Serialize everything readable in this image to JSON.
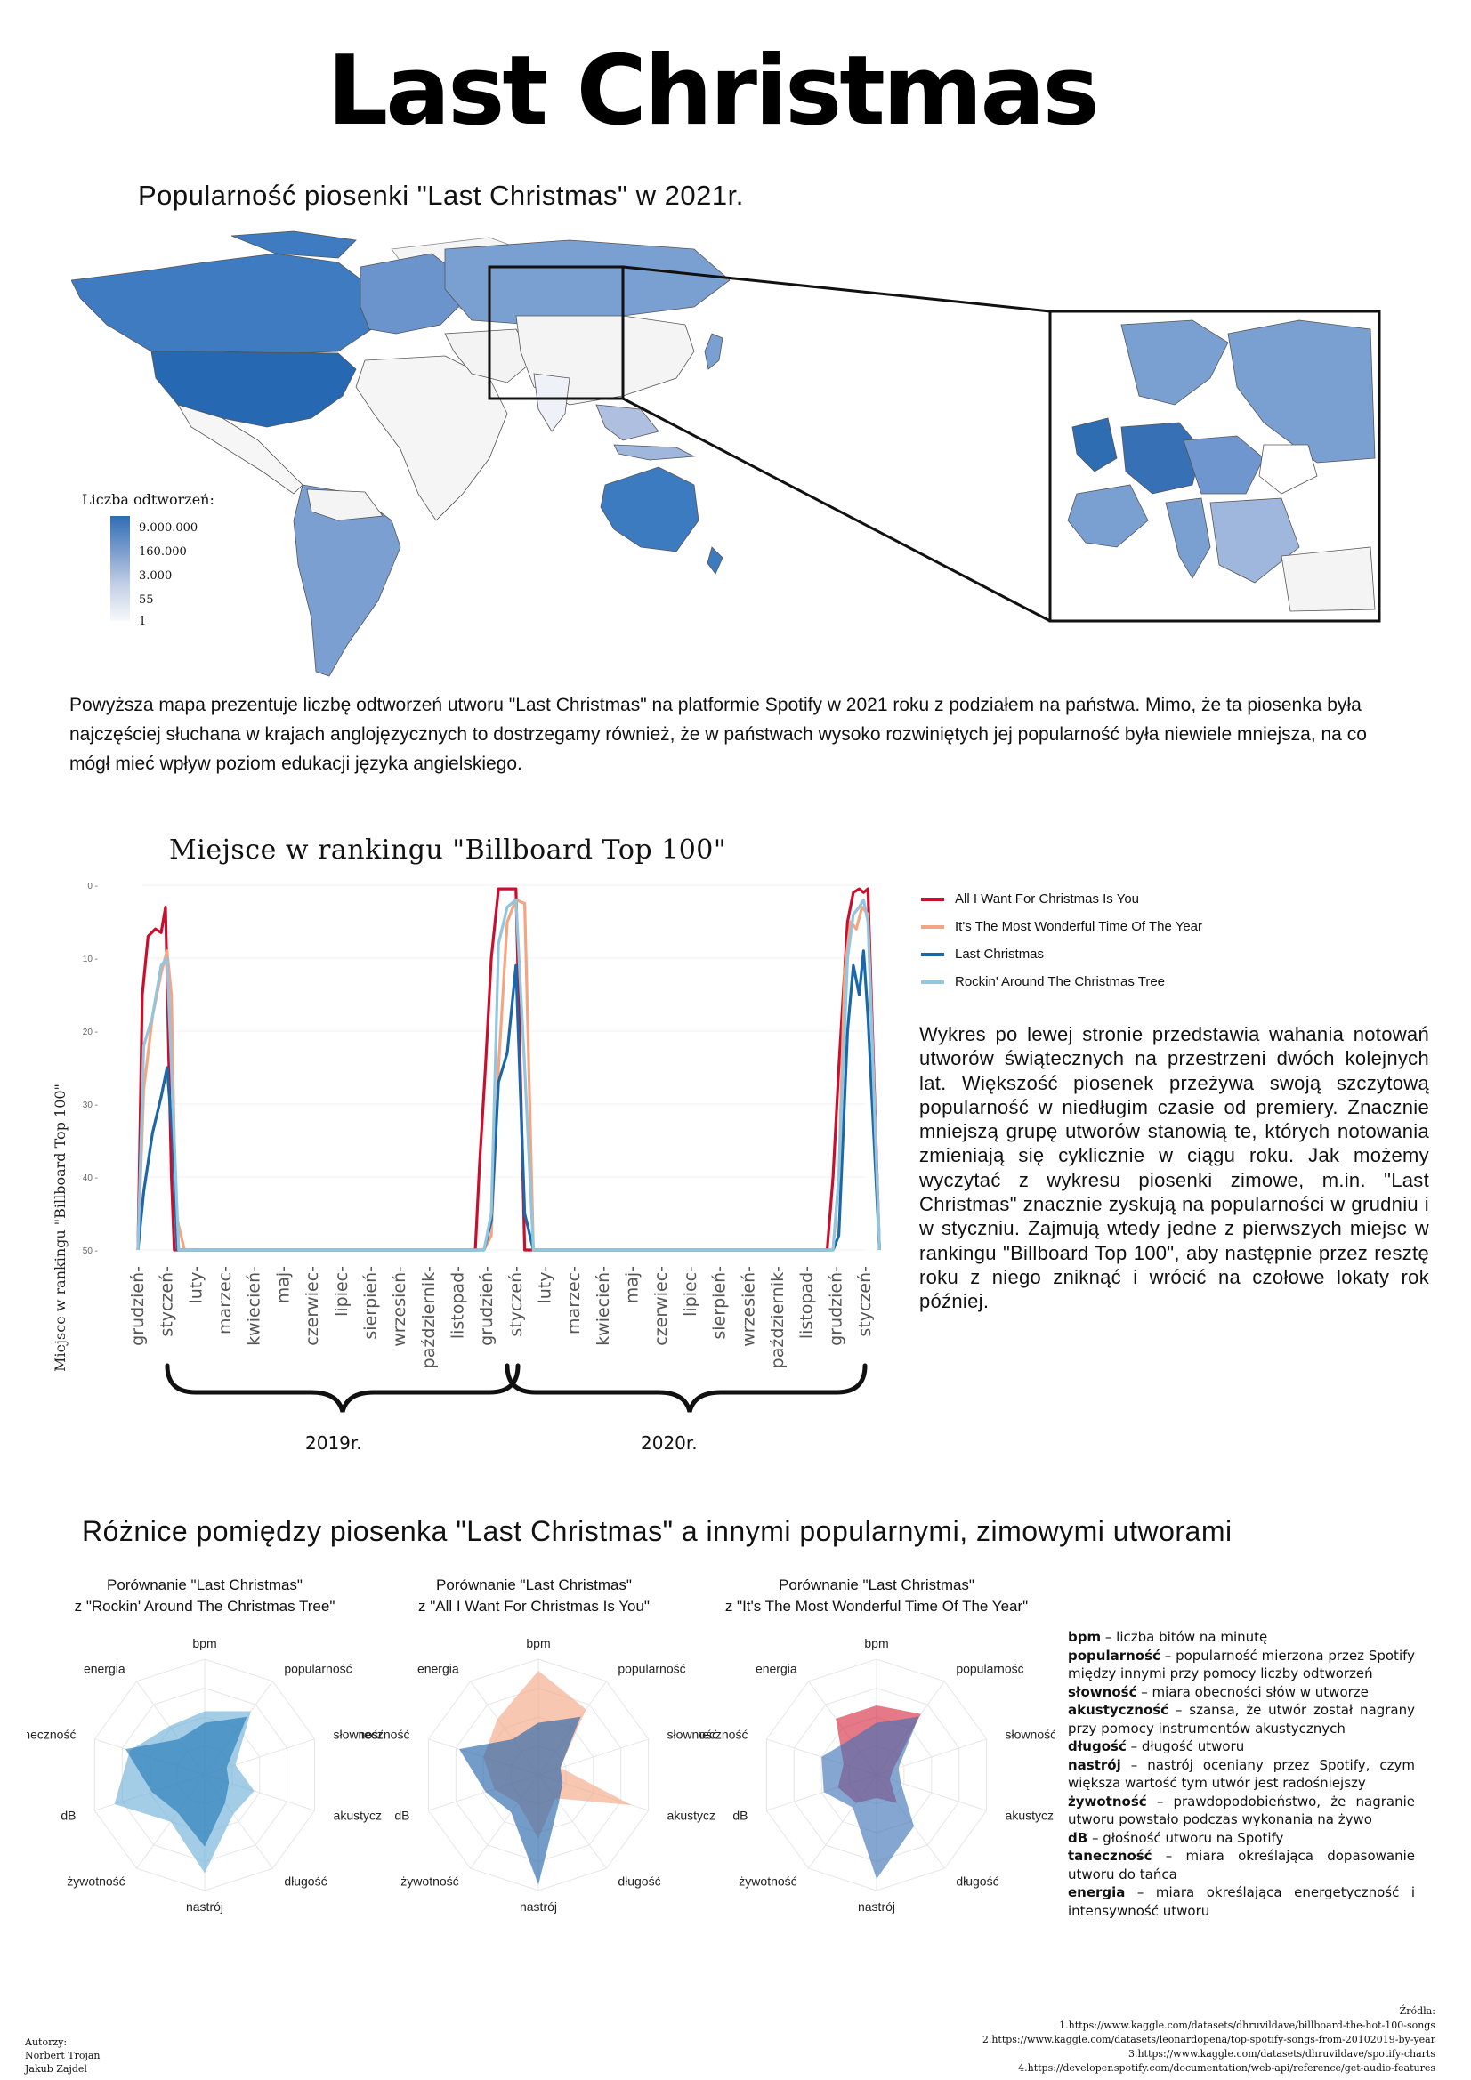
{
  "title": "Last Christmas",
  "map": {
    "title": "Popularność piosenki \"Last Christmas\" w 2021r.",
    "legend_title": "Liczba odtworzeń:",
    "legend_labels": [
      "9.000.000",
      "160.000",
      "3.000",
      "55",
      "1"
    ],
    "colors": {
      "high": "#2f6db3",
      "mid": "#7f9fcf",
      "low": "#dfe5f1",
      "none": "#f7f7f7"
    },
    "description": "Powyższa mapa prezentuje liczbę odtworzeń utworu \"Last Christmas\" na platformie Spotify w 2021 roku z podziałem na państwa. Mimo, że ta piosenka była najczęściej słuchana w krajach anglojęzycznych to dostrzegamy również, że w państwach wysoko rozwiniętych jej popularność była niewiele mniejsza, na co mógł mieć wpływ poziom edukacji języka angielskiego."
  },
  "billboard": {
    "title": "Miejsce w rankingu \"Billboard Top 100\"",
    "description": "Wykres po lewej stronie przedstawia wahania notowań utworów świątecznych na przestrzeni dwóch kolejnych lat. Większość piosenek przeżywa swoją szczytową popularność w niedługim czasie od premiery. Znacznie mniejszą grupę utworów stanowią te, których notowania zmieniają się cyklicznie w ciągu roku. Jak możemy wyczytać z wykresu piosenki zimowe, m.in. \"Last Christmas\" znacznie zyskują na popularności w grudniu i w styczniu. Zajmują wtedy jedne z pierwszych miejsc w rankingu \"Billboard Top 100\", aby następnie przez resztę roku z niego zniknąć i wrócić na czołowe lokaty rok później.",
    "years": [
      "2019r.",
      "2020r."
    ]
  },
  "chart_data": {
    "type": "line",
    "ylabel": "Miejsce w rankingu \"Billboard Top 100\"",
    "ylim": [
      50,
      0
    ],
    "yticks": [
      0,
      10,
      20,
      30,
      40,
      50
    ],
    "categories": [
      "grudzień",
      "styczeń",
      "luty",
      "marzec",
      "kwiecień",
      "maj",
      "czerwiec",
      "lipiec",
      "sierpień",
      "wrzesień",
      "październik",
      "listopad",
      "grudzień",
      "styczeń",
      "luty",
      "marzec",
      "kwiecień",
      "maj",
      "czerwiec",
      "lipiec",
      "sierpień",
      "wrzesień",
      "październik",
      "listopad",
      "grudzień",
      "styczeń"
    ],
    "series": [
      {
        "name": "All I Want For Christmas Is You",
        "color": "#c8102e",
        "x": [
          0,
          0.15,
          0.35,
          0.6,
          0.8,
          0.95,
          1.15,
          1.25,
          1.6,
          11.6,
          11.75,
          11.95,
          12.15,
          12.4,
          12.7,
          13.0,
          13.3,
          13.6,
          23.7,
          23.9,
          24.1,
          24.4,
          24.6,
          24.8,
          24.95,
          25.1,
          25.5
        ],
        "values": [
          50,
          15,
          7,
          6,
          6.5,
          3,
          40,
          50,
          50,
          50,
          38,
          25,
          10,
          0.5,
          0.5,
          0.5,
          50,
          50,
          50,
          40,
          25,
          5,
          1,
          0.5,
          1,
          0.5,
          50
        ]
      },
      {
        "name": "It's The Most Wonderful Time Of The Year",
        "color": "#f4a582",
        "x": [
          0,
          0.2,
          0.5,
          0.8,
          1.0,
          1.15,
          1.3,
          1.6,
          11.6,
          11.9,
          12.15,
          12.4,
          12.7,
          13.0,
          13.3,
          13.6,
          23.7,
          23.9,
          24.1,
          24.3,
          24.5,
          24.7,
          24.9,
          25.1,
          25.5
        ],
        "values": [
          50,
          28,
          18,
          12,
          9,
          15,
          45,
          50,
          50,
          50,
          48,
          25,
          5,
          2,
          2.5,
          50,
          50,
          50,
          40,
          12,
          5,
          6,
          3,
          4,
          50
        ]
      },
      {
        "name": "Last Christmas",
        "color": "#1b67a8",
        "x": [
          0,
          0.2,
          0.5,
          0.8,
          1.0,
          1.2,
          1.35,
          1.6,
          11.6,
          11.9,
          12.15,
          12.4,
          12.7,
          13.0,
          13.3,
          13.6,
          23.7,
          23.9,
          24.1,
          24.4,
          24.6,
          24.8,
          24.95,
          25.1,
          25.5
        ],
        "values": [
          50,
          42,
          34,
          29,
          25,
          35,
          50,
          50,
          50,
          50,
          46,
          27,
          23,
          11,
          45,
          50,
          50,
          50,
          48,
          20,
          11,
          15,
          9,
          18,
          50
        ]
      },
      {
        "name": "Rockin' Around The Christmas Tree",
        "color": "#92c5de",
        "x": [
          0,
          0.2,
          0.5,
          0.8,
          1.0,
          1.2,
          1.4,
          1.6,
          11.6,
          11.9,
          12.15,
          12.4,
          12.7,
          13.0,
          13.3,
          13.6,
          23.7,
          23.9,
          24.1,
          24.4,
          24.6,
          24.8,
          24.95,
          25.1,
          25.5
        ],
        "values": [
          50,
          22,
          18,
          11,
          10,
          30,
          50,
          50,
          50,
          50,
          45,
          8,
          3,
          2,
          25,
          50,
          50,
          50,
          40,
          10,
          4,
          3,
          2,
          5,
          50
        ]
      }
    ]
  },
  "radar": {
    "title": "Różnice pomiędzy piosenka \"Last Christmas\" a innymi popularnymi, zimowymi utworami",
    "axes": [
      "bpm",
      "popularność",
      "słowność",
      "akustyczność",
      "długość",
      "nastrój",
      "żywotność",
      "dB",
      "taneczność",
      "energia"
    ],
    "charts": [
      {
        "title_line1": "Porównanie \"Last Christmas\"",
        "title_line2": "z \"Rockin' Around The Christmas Tree\"",
        "series": [
          {
            "role": "Last Christmas",
            "color": "#1f77b4",
            "values": [
              0.45,
              0.62,
              0.2,
              0.22,
              0.3,
              0.62,
              0.4,
              0.48,
              0.72,
              0.38
            ]
          },
          {
            "role": "Rockin' Around The Christmas Tree",
            "color": "#6baed6",
            "values": [
              0.55,
              0.68,
              0.28,
              0.45,
              0.42,
              0.85,
              0.5,
              0.82,
              0.68,
              0.52
            ]
          }
        ]
      },
      {
        "title_line1": "Porównanie \"Last Christmas\"",
        "title_line2": "z \"All I Want For Christmas Is You\"",
        "series": [
          {
            "role": "Last Christmas",
            "color": "#1f5fa8",
            "values": [
              0.45,
              0.62,
              0.2,
              0.22,
              0.3,
              0.95,
              0.4,
              0.48,
              0.72,
              0.38
            ]
          },
          {
            "role": "All I Want For Christmas Is You",
            "color": "#f4a582",
            "values": [
              0.9,
              0.7,
              0.2,
              0.85,
              0.25,
              0.55,
              0.3,
              0.4,
              0.5,
              0.6
            ]
          }
        ]
      },
      {
        "title_line1": "Porównanie \"Last Christmas\"",
        "title_line2": "z \"It's The Most Wonderful Time Of The Year\"",
        "series": [
          {
            "role": "Last Christmas",
            "color": "#3b6fb6",
            "values": [
              0.45,
              0.62,
              0.2,
              0.22,
              0.55,
              0.9,
              0.35,
              0.48,
              0.5,
              0.38
            ]
          },
          {
            "role": "It's The Most Wonderful Time Of The Year",
            "color": "#d7263d",
            "values": [
              0.6,
              0.65,
              0.15,
              0.12,
              0.3,
              0.2,
              0.3,
              0.35,
              0.3,
              0.6
            ]
          }
        ]
      }
    ],
    "glossary": [
      {
        "term": "bpm",
        "desc": "– liczba bitów na minutę"
      },
      {
        "term": "popularność",
        "desc": "– popularność mierzona przez Spotify między innymi przy pomocy liczby odtworzeń"
      },
      {
        "term": "słowność",
        "desc": "– miara obecności słów w utworze"
      },
      {
        "term": "akustyczność",
        "desc": "– szansa, że utwór został nagrany przy pomocy instrumentów akustycznych"
      },
      {
        "term": "długość",
        "desc": "– długość utworu"
      },
      {
        "term": "nastrój",
        "desc": "– nastrój oceniany przez Spotify, czym większa wartość tym utwór jest radośniejszy"
      },
      {
        "term": "żywotność",
        "desc": "– prawdopodobieństwo, że nagranie utworu powstało podczas wykonania na żywo"
      },
      {
        "term": "dB",
        "desc": "– głośność utworu na Spotify"
      },
      {
        "term": "taneczność",
        "desc": "– miara określająca dopasowanie utworu do tańca"
      },
      {
        "term": "energia",
        "desc": "– miara określająca energetyczność i intensywność utworu"
      }
    ]
  },
  "sources": {
    "title": "Źródła:",
    "items": [
      "1.https://www.kaggle.com/datasets/dhruvildave/billboard-the-hot-100-songs",
      "2.https://www.kaggle.com/datasets/leonardopena/top-spotify-songs-from-20102019-by-year",
      "3.https://www.kaggle.com/datasets/dhruvildave/spotify-charts",
      "4.https://developer.spotify.com/documentation/web-api/reference/get-audio-features"
    ]
  },
  "authors": {
    "label": "Autorzy:",
    "names": [
      "Norbert Trojan",
      "Jakub Zajdel"
    ]
  }
}
